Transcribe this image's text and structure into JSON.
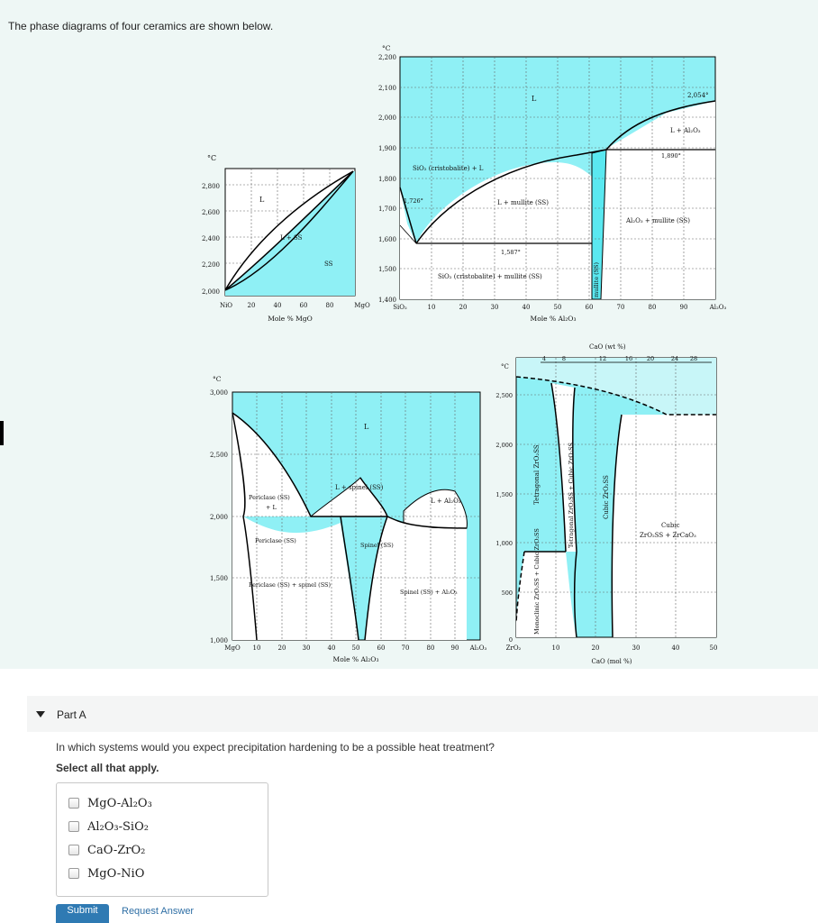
{
  "intro": {
    "text": "The phase diagrams of four ceramics are shown below."
  },
  "diagram_nio": {
    "temp_unit": "°C",
    "y_ticks": [
      "2,800",
      "2,600",
      "2,400",
      "2,200",
      "2,000"
    ],
    "x_ticks": [
      "NiO",
      "20",
      "40",
      "60",
      "80",
      "MgO"
    ],
    "xlabel": "Mole % MgO",
    "labels": {
      "liquid": "L",
      "two_phase": "L + SS",
      "solid": "SS"
    }
  },
  "diagram_sio2": {
    "temp_unit": "°C",
    "y_ticks": [
      "2,200",
      "2,100",
      "2,000",
      "1,900",
      "1,800",
      "1,700",
      "1,600",
      "1,500",
      "1,400"
    ],
    "x_ticks": [
      "SiO₂",
      "10",
      "20",
      "30",
      "40",
      "50",
      "60",
      "70",
      "80",
      "90",
      "Al₂O₃"
    ],
    "xlabel": "Mole % Al₂O₃",
    "labels": {
      "liquid": "L",
      "temp_2054": "2,054°",
      "l_al2o3": "L + Al₂O₃",
      "temp_1890": "1,890°",
      "cristobalite_l": "SiO₂ (cristobalite) + L",
      "temp_1726": "1,726°",
      "l_mullite": "L + mullite (SS)",
      "al2o3_mullite": "Al₂O₃ + mullite (SS)",
      "temp_1587": "1,587°",
      "cristobalite_mullite": "SiO₂ (cristobalite) + mullite (SS)",
      "mullite_ss": "mullite (SS)"
    }
  },
  "diagram_mgo": {
    "temp_unit": "°C",
    "y_ticks": [
      "3,000",
      "2,500",
      "2,000",
      "1,500",
      "1,000"
    ],
    "x_ticks": [
      "MgO",
      "10",
      "20",
      "30",
      "40",
      "50",
      "60",
      "70",
      "80",
      "90",
      "Al₂O₃"
    ],
    "xlabel": "Mole % Al₂O₃",
    "labels": {
      "liquid": "L",
      "l_spinel": "L + spinel (SS)",
      "periclase_l_1": "Periclase (SS)",
      "periclase_l_2": "+ L",
      "l_al2o3": "L + Al₂O₃",
      "periclase": "Periclase (SS)",
      "spinel": "Spinel (SS)",
      "periclase_spinel": "Periclase (SS) + spinel (SS)",
      "spinel_al2o3": "Spinel (SS) + Al₂O₃"
    }
  },
  "diagram_zro2": {
    "temp_unit": "°C",
    "top_axis_title": "CaO (wt %)",
    "top_ticks": [
      "4",
      "8",
      "12",
      "16",
      "20",
      "24",
      "28"
    ],
    "y_ticks": [
      "2,500",
      "2,000",
      "1,500",
      "1,000",
      "500",
      "0"
    ],
    "x_ticks": [
      "ZrO₂",
      "10",
      "20",
      "30",
      "40",
      "50"
    ],
    "xlabel": "CaO (mol %)",
    "labels": {
      "tetragonal": "Tetragonal ZrO₂SS",
      "tetragonal_cubic": "Tetragonal ZrO₂SS + Cubic ZrO₂SS",
      "cubic": "Cubic ZrO₂SS",
      "cubic_zrcao3_1": "Cubic",
      "cubic_zrcao3_2": "ZrO₂SS + ZrCaO₃",
      "monoclinic_cubic": "Monoclinic ZrO₂SS + Cubic ZrO₂SS"
    }
  },
  "part": {
    "title": "Part A"
  },
  "question": {
    "text": "In which systems would you expect precipitation hardening to be a possible heat treatment?",
    "instruction": "Select all that apply."
  },
  "options": [
    {
      "label": "MgO-Al₂O₃",
      "checked": false
    },
    {
      "label": "Al₂O₃-SiO₂",
      "checked": false
    },
    {
      "label": "CaO-ZrO₂",
      "checked": false
    },
    {
      "label": "MgO-NiO",
      "checked": false
    }
  ],
  "buttons": {
    "submit": "Submit",
    "request_answer": "Request Answer"
  },
  "colors": {
    "fill": "#8ff0f5",
    "fill_dark": "#5ae8f0",
    "band": "#eef7f5",
    "submit": "#2f7ab3"
  }
}
